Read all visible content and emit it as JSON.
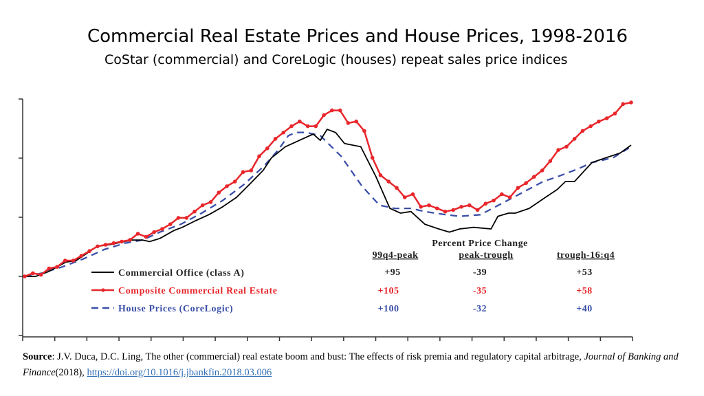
{
  "slide": {
    "title": "Commercial Real Estate Prices and House Prices, 1998-2016",
    "subtitle": "CoStar (commercial) and CoreLogic (houses) repeat sales price indices"
  },
  "chart_data": {
    "type": "line",
    "title": "Commercial Real Estate Prices and House Prices, 1998-2016",
    "subtitle": "CoStar (commercial) and CoreLogic (houses) repeat sales price indices",
    "xlabel": "",
    "ylabel": "",
    "xlim": [
      1998,
      2016.75
    ],
    "ylim": [
      62.6,
      212.2
    ],
    "grid": false,
    "tick_labels_shown": false,
    "legend_placement": "bottom-left inside plot",
    "series": [
      {
        "name": "Commercial Office (class A)",
        "color": "#000000",
        "style": "solid",
        "x": [
          1998.0,
          1998.34,
          1998.73,
          1999.27,
          1999.59,
          2000.24,
          2000.61,
          2001.32,
          2001.64,
          2001.86,
          2002.18,
          2002.61,
          2002.87,
          2003.26,
          2003.69,
          2004.12,
          2004.55,
          2004.94,
          2005.37,
          2005.63,
          2006.06,
          2006.49,
          2006.92,
          2007.14,
          2007.35,
          2007.61,
          2007.89,
          2008.39,
          2008.86,
          2009.29,
          2009.62,
          2009.94,
          2010.37,
          2010.8,
          2011.13,
          2011.45,
          2011.88,
          2012.42,
          2012.63,
          2012.96,
          2013.17,
          2013.6,
          2014.03,
          2014.47,
          2014.72,
          2015.0,
          2015.54,
          2015.97,
          2016.41,
          2016.75
        ],
        "y": [
          100,
          100,
          103,
          109,
          110,
          119,
          120,
          123,
          123,
          122,
          124,
          129,
          131,
          135,
          139,
          144,
          150,
          158,
          167,
          175,
          182,
          186,
          190,
          186,
          193,
          191,
          184,
          182,
          163,
          143,
          140,
          141,
          133,
          130,
          128,
          130,
          131,
          130,
          138,
          140,
          140,
          143,
          149,
          155,
          160,
          160,
          172,
          175,
          178,
          183
        ]
      },
      {
        "name": "Composite Commercial Real Estate",
        "color": "#e8262b",
        "style": "solid-markers",
        "x": [
          1998.0,
          1998.25,
          1998.5,
          1998.75,
          1999.0,
          1999.25,
          1999.5,
          1999.75,
          2000.0,
          2000.25,
          2000.5,
          2000.75,
          2001.0,
          2001.25,
          2001.5,
          2001.75,
          2002.0,
          2002.25,
          2002.5,
          2002.75,
          2003.0,
          2003.25,
          2003.5,
          2003.75,
          2004.0,
          2004.25,
          2004.5,
          2004.75,
          2005.0,
          2005.25,
          2005.5,
          2005.75,
          2006.0,
          2006.25,
          2006.5,
          2006.75,
          2007.0,
          2007.25,
          2007.5,
          2007.75,
          2008.0,
          2008.25,
          2008.5,
          2008.75,
          2009.0,
          2009.25,
          2009.5,
          2009.75,
          2010.0,
          2010.25,
          2010.5,
          2010.75,
          2011.0,
          2011.25,
          2011.5,
          2011.75,
          2012.0,
          2012.25,
          2012.5,
          2012.75,
          2013.0,
          2013.25,
          2013.5,
          2013.75,
          2014.0,
          2014.25,
          2014.5,
          2014.75,
          2015.0,
          2015.25,
          2015.5,
          2015.75,
          2016.0,
          2016.25,
          2016.5,
          2016.75
        ],
        "y": [
          100,
          102,
          101,
          105,
          106,
          110,
          110,
          113,
          116,
          119,
          120,
          121,
          122,
          123,
          127,
          125,
          128,
          130,
          133,
          137,
          137,
          141,
          145,
          147,
          153,
          157,
          160,
          166,
          167,
          176,
          181,
          187,
          191,
          195,
          198,
          195,
          195,
          202,
          205,
          205,
          197,
          198,
          192,
          175,
          164,
          160,
          156,
          150,
          152,
          144,
          145,
          143,
          141,
          142,
          144,
          145,
          142,
          146,
          148,
          152,
          150,
          156,
          159,
          163,
          167,
          173,
          180,
          182,
          187,
          192,
          195,
          198,
          200,
          203,
          209,
          210
        ]
      },
      {
        "name": "House Prices (CoreLogic)",
        "color": "#3a4fa8",
        "style": "dashed",
        "x": [
          1998.0,
          1998.52,
          1999.16,
          1999.81,
          2000.46,
          2001.1,
          2001.64,
          2002.18,
          2002.83,
          2003.47,
          2004.12,
          2004.77,
          2005.41,
          2005.84,
          2006.15,
          2006.38,
          2006.71,
          2007.14,
          2007.78,
          2008.43,
          2008.97,
          2009.44,
          2009.94,
          2010.37,
          2011.02,
          2011.45,
          2012.09,
          2012.74,
          2013.39,
          2014.03,
          2014.47,
          2015.11,
          2015.54,
          2016.19,
          2016.75
        ],
        "y": [
          100,
          102,
          106,
          111,
          117,
          121,
          123,
          128,
          133,
          140,
          148,
          158,
          170,
          180,
          189,
          191,
          191,
          189,
          176,
          157,
          145,
          143,
          143,
          141,
          139,
          138,
          139,
          146,
          153,
          160,
          163,
          168,
          172,
          175,
          182
        ]
      }
    ],
    "annotation_table": {
      "title": "Percent Price Change",
      "columns": [
        "99q4-peak",
        "peak-trough",
        "trough-16:q4"
      ],
      "rows": [
        {
          "series": "Commercial Office (class A)",
          "values": [
            "+95",
            "-39",
            "+53"
          ]
        },
        {
          "series": "Composite Commercial Real Estate",
          "values": [
            "+105",
            "-35",
            "+58"
          ]
        },
        {
          "series": "House Prices (CoreLogic)",
          "values": [
            "+100",
            "-32",
            "+40"
          ]
        }
      ]
    }
  },
  "source": {
    "label": "Source",
    "text": ": J.V. Duca, D.C. Ling, The other (commercial)  real estate boom and bust: The effects of risk premia  and regulatory capital arbitrage, ",
    "journal": "Journal of Banking and Finance",
    "year": "(2018),  ",
    "link": "https://doi.org/10.1016/j.jbankfin.2018.03.006"
  }
}
